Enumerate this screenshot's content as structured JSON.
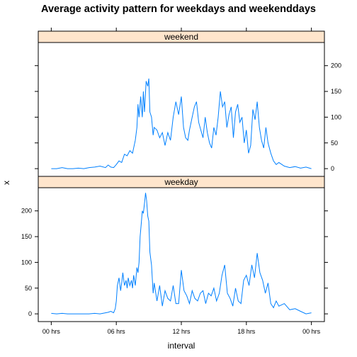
{
  "chart_data": {
    "type": "line",
    "title": "Average activity pattern for weekdays and weekenddays",
    "xlabel": "interval",
    "ylabel": "x",
    "x_unit": "hours",
    "xlim": [
      -1.2,
      25.2
    ],
    "ylim": [
      -15,
      245
    ],
    "x_ticks": [
      {
        "value": 0,
        "label": "00 hrs"
      },
      {
        "value": 6,
        "label": "06 hrs"
      },
      {
        "value": 12,
        "label": "12 hrs"
      },
      {
        "value": 18,
        "label": "18 hrs"
      },
      {
        "value": 24,
        "label": "00 hrs"
      }
    ],
    "y_ticks": [
      0,
      50,
      100,
      150,
      200
    ],
    "line_color": "#0080ff",
    "strip_color": "#ffe5cc",
    "panels": [
      {
        "name": "weekend",
        "x": [
          0,
          0.5,
          1,
          1.5,
          2,
          2.5,
          3,
          3.5,
          4,
          4.5,
          5,
          5.25,
          5.5,
          5.75,
          6,
          6.25,
          6.5,
          6.75,
          7,
          7.25,
          7.5,
          7.75,
          7.9,
          8,
          8.1,
          8.25,
          8.4,
          8.5,
          8.6,
          8.75,
          8.9,
          9,
          9.1,
          9.25,
          9.4,
          9.5,
          9.75,
          10,
          10.25,
          10.5,
          10.75,
          11,
          11.25,
          11.5,
          11.75,
          12,
          12.2,
          12.4,
          12.6,
          12.75,
          13,
          13.2,
          13.4,
          13.6,
          13.8,
          14,
          14.2,
          14.4,
          14.6,
          14.8,
          15,
          15.2,
          15.4,
          15.6,
          15.8,
          16,
          16.2,
          16.4,
          16.6,
          16.8,
          17,
          17.2,
          17.4,
          17.6,
          17.8,
          18,
          18.2,
          18.4,
          18.6,
          18.8,
          19,
          19.2,
          19.4,
          19.6,
          19.8,
          20,
          20.25,
          20.5,
          20.75,
          21,
          21.5,
          22,
          22.5,
          23,
          23.5,
          24
        ],
        "y": [
          0,
          0,
          2,
          0,
          0,
          1,
          0,
          2,
          3,
          5,
          2,
          7,
          3,
          2,
          8,
          15,
          12,
          28,
          25,
          35,
          30,
          55,
          80,
          125,
          100,
          140,
          100,
          150,
          110,
          170,
          160,
          175,
          110,
          100,
          65,
          80,
          75,
          60,
          70,
          45,
          70,
          55,
          100,
          130,
          105,
          140,
          80,
          60,
          55,
          75,
          100,
          120,
          130,
          90,
          75,
          60,
          100,
          70,
          50,
          40,
          80,
          65,
          100,
          150,
          120,
          130,
          80,
          105,
          120,
          60,
          110,
          125,
          90,
          100,
          50,
          75,
          30,
          45,
          115,
          95,
          130,
          80,
          55,
          40,
          80,
          50,
          30,
          15,
          8,
          12,
          5,
          2,
          4,
          1,
          3,
          0
        ]
      },
      {
        "name": "weekday",
        "x": [
          0,
          0.5,
          1,
          1.5,
          2,
          2.5,
          3,
          3.5,
          4,
          4.5,
          5,
          5.25,
          5.5,
          5.75,
          5.9,
          6,
          6.1,
          6.25,
          6.4,
          6.5,
          6.6,
          6.75,
          6.9,
          7,
          7.1,
          7.25,
          7.4,
          7.5,
          7.6,
          7.75,
          7.9,
          8,
          8.1,
          8.2,
          8.3,
          8.4,
          8.5,
          8.6,
          8.7,
          8.8,
          8.9,
          9,
          9.1,
          9.25,
          9.4,
          9.5,
          9.75,
          10,
          10.25,
          10.5,
          10.75,
          11,
          11.25,
          11.5,
          11.75,
          12,
          12.25,
          12.5,
          12.75,
          13,
          13.25,
          13.5,
          13.75,
          14,
          14.25,
          14.5,
          14.75,
          15,
          15.25,
          15.5,
          15.75,
          16,
          16.25,
          16.5,
          16.75,
          17,
          17.25,
          17.5,
          17.75,
          18,
          18.25,
          18.5,
          18.75,
          19,
          19.25,
          19.5,
          19.75,
          20,
          20.25,
          20.5,
          20.75,
          21,
          21.5,
          22,
          22.5,
          23,
          23.5,
          24
        ],
        "y": [
          1,
          0,
          1,
          0,
          0,
          0,
          0,
          0,
          1,
          0,
          2,
          3,
          5,
          2,
          10,
          25,
          55,
          70,
          45,
          60,
          80,
          55,
          65,
          50,
          70,
          55,
          65,
          50,
          75,
          55,
          90,
          80,
          100,
          150,
          175,
          200,
          195,
          215,
          235,
          220,
          190,
          180,
          120,
          95,
          40,
          60,
          25,
          55,
          15,
          45,
          30,
          25,
          55,
          20,
          20,
          85,
          45,
          35,
          20,
          45,
          30,
          25,
          40,
          45,
          20,
          40,
          35,
          50,
          25,
          40,
          75,
          95,
          40,
          30,
          15,
          50,
          25,
          20,
          65,
          75,
          55,
          95,
          70,
          118,
          80,
          65,
          40,
          60,
          20,
          12,
          25,
          15,
          20,
          8,
          10,
          5,
          0,
          2
        ]
      }
    ]
  }
}
